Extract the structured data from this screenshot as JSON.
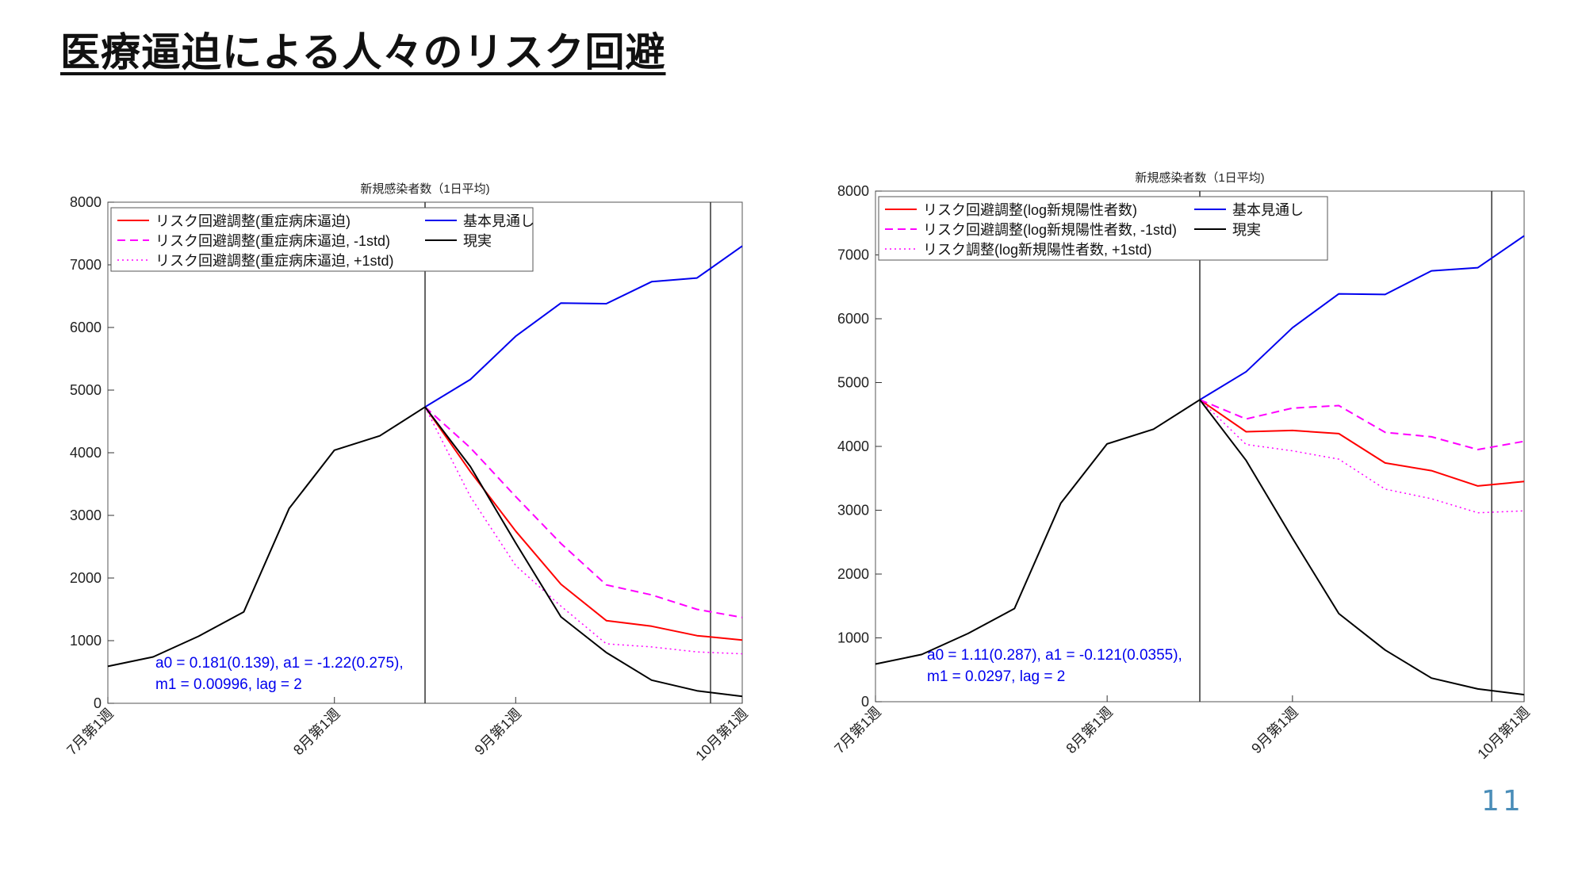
{
  "slide": {
    "title": "医療逼迫による人々のリスク回避",
    "page_number": "11"
  },
  "chart_data": [
    {
      "type": "line",
      "title": "新規感染者数（1日平均)",
      "xlabel": "",
      "ylabel": "",
      "x_tick_labels": [
        "7月第1週",
        "8月第1週",
        "9月第1週",
        "10月第1週"
      ],
      "x_tick_weeks": [
        0,
        5,
        9,
        14
      ],
      "xlim": [
        0,
        14
      ],
      "ylim": [
        0,
        8000
      ],
      "y_ticks": [
        0,
        1000,
        2000,
        3000,
        4000,
        5000,
        6000,
        7000,
        8000
      ],
      "grid": false,
      "legend_position": "top-left",
      "vertical_lines": [
        7,
        13.3
      ],
      "annotation": [
        "a0 = 0.181(0.139), a1 = -1.22(0.275),",
        "m1 = 0.00996, lag = 2"
      ],
      "annotation_color": "#0000ee",
      "series": [
        {
          "name": "リスク回避調整(重症病床逼迫)",
          "color": "#ff0000",
          "style": "solid",
          "x": [
            7,
            8,
            9,
            10,
            11,
            12,
            13,
            14
          ],
          "y": [
            4730,
            3700,
            2750,
            1900,
            1320,
            1230,
            1080,
            1010
          ]
        },
        {
          "name": "リスク回避調整(重症病床逼迫, -1std)",
          "color": "#ff00ff",
          "style": "dashed",
          "x": [
            7,
            8,
            9,
            10,
            11,
            12,
            13,
            14
          ],
          "y": [
            4730,
            4080,
            3300,
            2550,
            1890,
            1730,
            1500,
            1370
          ]
        },
        {
          "name": "リスク回避調整(重症病床逼迫, +1std)",
          "color": "#ff00ff",
          "style": "dotted",
          "x": [
            7,
            8,
            9,
            10,
            11,
            12,
            13,
            14
          ],
          "y": [
            4730,
            3300,
            2200,
            1550,
            950,
            900,
            820,
            790
          ]
        },
        {
          "name": "基本見通し",
          "color": "#0000ee",
          "style": "solid",
          "x": [
            7,
            8,
            9,
            10,
            11,
            12,
            13,
            14
          ],
          "y": [
            4730,
            5170,
            5860,
            6390,
            6380,
            6730,
            6790,
            7300
          ]
        },
        {
          "name": "現実",
          "color": "#000000",
          "style": "solid",
          "x": [
            0,
            1,
            2,
            3,
            4,
            5,
            6,
            7,
            8,
            9,
            10,
            11,
            12,
            13,
            14
          ],
          "y": [
            590,
            740,
            1070,
            1460,
            3110,
            4040,
            4270,
            4730,
            3780,
            2560,
            1380,
            810,
            370,
            200,
            110
          ]
        }
      ]
    },
    {
      "type": "line",
      "title": "新規感染者数（1日平均)",
      "xlabel": "",
      "ylabel": "",
      "x_tick_labels": [
        "7月第1週",
        "8月第1週",
        "9月第1週",
        "10月第1週"
      ],
      "x_tick_weeks": [
        0,
        5,
        9,
        14
      ],
      "xlim": [
        0,
        14
      ],
      "ylim": [
        0,
        8000
      ],
      "y_ticks": [
        0,
        1000,
        2000,
        3000,
        4000,
        5000,
        6000,
        7000,
        8000
      ],
      "grid": false,
      "legend_position": "top-left",
      "vertical_lines": [
        7,
        13.3
      ],
      "annotation": [
        "a0 = 1.11(0.287), a1 = -0.121(0.0355),",
        "m1 = 0.0297, lag = 2"
      ],
      "annotation_color": "#0000ee",
      "series": [
        {
          "name": "リスク回避調整(log新規陽性者数)",
          "color": "#ff0000",
          "style": "solid",
          "x": [
            7,
            8,
            9,
            10,
            11,
            12,
            13,
            14
          ],
          "y": [
            4730,
            4230,
            4250,
            4200,
            3740,
            3620,
            3380,
            3450
          ]
        },
        {
          "name": "リスク回避調整(log新規陽性者数, -1std)",
          "color": "#ff00ff",
          "style": "dashed",
          "x": [
            7,
            8,
            9,
            10,
            11,
            12,
            13,
            14
          ],
          "y": [
            4730,
            4430,
            4600,
            4640,
            4220,
            4150,
            3950,
            4080
          ]
        },
        {
          "name": "リスク調整(log新規陽性者数, +1std)",
          "color": "#ff00ff",
          "style": "dotted",
          "x": [
            7,
            8,
            9,
            10,
            11,
            12,
            13,
            14
          ],
          "y": [
            4730,
            4030,
            3930,
            3800,
            3330,
            3180,
            2960,
            2990
          ]
        },
        {
          "name": "基本見通し",
          "color": "#0000ee",
          "style": "solid",
          "x": [
            7,
            8,
            9,
            10,
            11,
            12,
            13,
            14
          ],
          "y": [
            4730,
            5170,
            5860,
            6390,
            6380,
            6750,
            6800,
            7300
          ]
        },
        {
          "name": "現実",
          "color": "#000000",
          "style": "solid",
          "x": [
            0,
            1,
            2,
            3,
            4,
            5,
            6,
            7,
            8,
            9,
            10,
            11,
            12,
            13,
            14
          ],
          "y": [
            590,
            740,
            1070,
            1460,
            3110,
            4040,
            4270,
            4730,
            3780,
            2560,
            1380,
            810,
            370,
            200,
            110
          ]
        }
      ]
    }
  ]
}
